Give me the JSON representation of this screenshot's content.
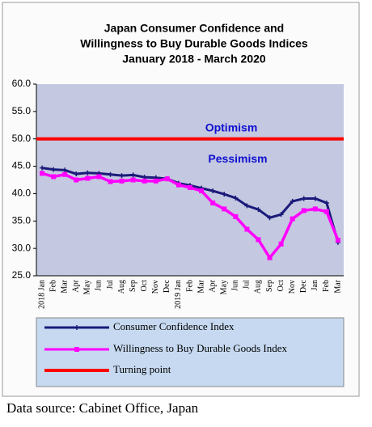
{
  "chart_data": {
    "type": "line",
    "title": [
      "Japan Consumer Confidence and",
      "Willingness to Buy Durable Goods Indices"
    ],
    "subtitle": "January 2018 - March 2020",
    "categories": [
      "2018 Jan",
      "Feb",
      "Mar",
      "Apr",
      "May",
      "Jun",
      "Jul",
      "Aug",
      "Sep",
      "Oct",
      "Nov",
      "Dec",
      "2019 Jan",
      "Feb",
      "Mar",
      "Apr",
      "May",
      "Jun",
      "Jul",
      "Aug",
      "Sep",
      "Oct",
      "Nov",
      "Dec",
      "Jan",
      "Feb",
      "Mar"
    ],
    "series": [
      {
        "name": "Consumer Confidence Index",
        "color": "#1a1a7a",
        "marker": "plus",
        "values": [
          44.7,
          44.4,
          44.3,
          43.6,
          43.8,
          43.7,
          43.5,
          43.3,
          43.4,
          43.0,
          42.9,
          42.7,
          41.9,
          41.5,
          41.0,
          40.5,
          39.9,
          39.2,
          37.8,
          37.1,
          35.6,
          36.2,
          38.6,
          39.1,
          39.1,
          38.3,
          31.1
        ]
      },
      {
        "name": "Willingness to Buy Durable Goods Index",
        "color": "#ff00ff",
        "marker": "square",
        "values": [
          43.7,
          43.1,
          43.5,
          42.5,
          42.8,
          43.1,
          42.2,
          42.3,
          42.5,
          42.3,
          42.3,
          42.7,
          41.6,
          41.1,
          40.5,
          38.3,
          37.2,
          35.8,
          33.5,
          31.6,
          28.3,
          30.8,
          35.4,
          36.9,
          37.2,
          36.7,
          31.5
        ]
      }
    ],
    "reference_line": {
      "name": "Turning point",
      "color": "#ff0000",
      "value": 50
    },
    "annotations": [
      {
        "text": "Optimism",
        "value": 51.9
      },
      {
        "text": "Pessimism",
        "value": 46.2
      }
    ],
    "ylim": [
      25,
      60
    ],
    "yticks": [
      {
        "value": 25,
        "label": "25.0"
      },
      {
        "value": 30,
        "label": "30.0"
      },
      {
        "value": 35,
        "label": "35.0"
      },
      {
        "value": 40,
        "label": "40.0"
      },
      {
        "value": 45,
        "label": "45.0"
      },
      {
        "value": 50,
        "label": "50.0"
      },
      {
        "value": 55,
        "label": "55.0"
      },
      {
        "value": 60,
        "label": "60.0"
      }
    ],
    "grid": false,
    "source": "Data source: Cabinet Office, Japan"
  }
}
